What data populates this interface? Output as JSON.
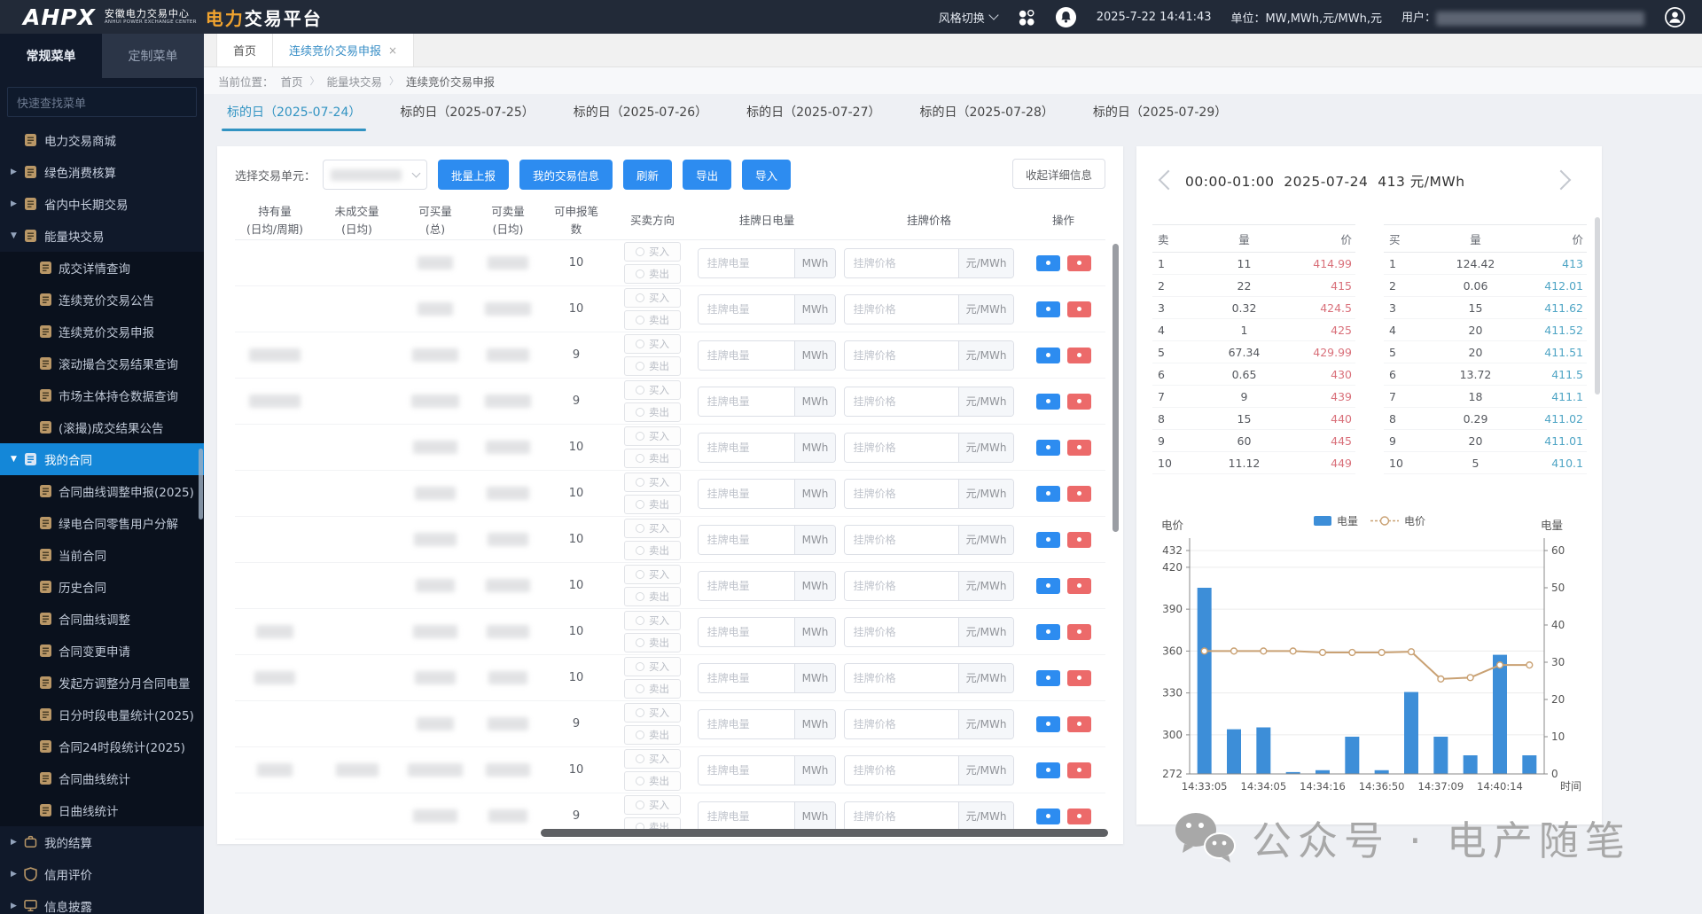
{
  "header": {
    "logo_text": "AHPX",
    "org_cn": "安徽电力交易中心",
    "org_en": "ANHUI POWER EXCHANGE CENTER",
    "title_accent": "电力",
    "title_rest": "交易平台",
    "style_switch_label": "风格切换",
    "datetime": "2025-7-22 14:41:43",
    "units_text": "单位：MW,MWh,元/MWh,元",
    "user_prefix": "用户："
  },
  "sidebar": {
    "tabs": [
      {
        "label": "常规菜单",
        "active": true
      },
      {
        "label": "定制菜单",
        "active": false
      }
    ],
    "search_placeholder": "快速查找菜单",
    "menu": [
      {
        "label": "电力交易商城",
        "depth": 0,
        "arrow": "",
        "icon": "doc"
      },
      {
        "label": "绿色消费核算",
        "depth": 0,
        "arrow": "right",
        "icon": "doc"
      },
      {
        "label": "省内中长期交易",
        "depth": 0,
        "arrow": "right",
        "icon": "doc"
      },
      {
        "label": "能量块交易",
        "depth": 0,
        "arrow": "down",
        "icon": "doc"
      },
      {
        "label": "成交详情查询",
        "depth": 1,
        "icon": "doc"
      },
      {
        "label": "连续竞价交易公告",
        "depth": 1,
        "icon": "doc"
      },
      {
        "label": "连续竞价交易申报",
        "depth": 1,
        "icon": "doc"
      },
      {
        "label": "滚动撮合交易结果查询",
        "depth": 1,
        "icon": "doc"
      },
      {
        "label": "市场主体持仓数据查询",
        "depth": 1,
        "icon": "doc"
      },
      {
        "label": "(滚撮)成交结果公告",
        "depth": 1,
        "icon": "doc"
      },
      {
        "label": "我的合同",
        "depth": 0,
        "arrow": "down",
        "icon": "doc",
        "selected": true
      },
      {
        "label": "合同曲线调整申报(2025)",
        "depth": 1,
        "icon": "doc"
      },
      {
        "label": "绿电合同零售用户分解",
        "depth": 1,
        "icon": "doc"
      },
      {
        "label": "当前合同",
        "depth": 1,
        "icon": "doc"
      },
      {
        "label": "历史合同",
        "depth": 1,
        "icon": "doc"
      },
      {
        "label": "合同曲线调整",
        "depth": 1,
        "icon": "doc"
      },
      {
        "label": "合同变更申请",
        "depth": 1,
        "icon": "doc"
      },
      {
        "label": "发起方调整分月合同电量",
        "depth": 1,
        "icon": "doc"
      },
      {
        "label": "日分时段电量统计(2025)",
        "depth": 1,
        "icon": "doc"
      },
      {
        "label": "合同24时段统计(2025)",
        "depth": 1,
        "icon": "doc"
      },
      {
        "label": "合同曲线统计",
        "depth": 1,
        "icon": "doc"
      },
      {
        "label": "日曲线统计",
        "depth": 1,
        "icon": "doc"
      },
      {
        "label": "我的结算",
        "depth": 0,
        "arrow": "right",
        "icon": "briefcase"
      },
      {
        "label": "信用评价",
        "depth": 0,
        "arrow": "right",
        "icon": "shield"
      },
      {
        "label": "信息披露",
        "depth": 0,
        "arrow": "right",
        "icon": "board"
      }
    ]
  },
  "page_tabs": [
    {
      "label": "首页",
      "active": false,
      "close": ""
    },
    {
      "label": "连续竞价交易申报",
      "active": true,
      "close": "×"
    }
  ],
  "breadcrumb": {
    "prefix": "当前位置：",
    "items": [
      "首页",
      "能量块交易",
      "连续竞价交易申报"
    ]
  },
  "date_tabs": [
    {
      "label": "标的日（2025-07-24）",
      "active": true
    },
    {
      "label": "标的日（2025-07-25）",
      "active": false
    },
    {
      "label": "标的日（2025-07-26）",
      "active": false
    },
    {
      "label": "标的日（2025-07-27）",
      "active": false
    },
    {
      "label": "标的日（2025-07-28）",
      "active": false
    },
    {
      "label": "标的日（2025-07-29）",
      "active": false
    }
  ],
  "toolbar": {
    "unit_select_label": "选择交易单元：",
    "buttons": [
      "批量上报",
      "我的交易信息",
      "刷新",
      "导出",
      "导入"
    ],
    "collapse_button": "收起详细信息"
  },
  "declare_table": {
    "headers": [
      {
        "l1": "持有量",
        "l2": "(日均/周期)"
      },
      {
        "l1": "未成交量",
        "l2": "(日均)"
      },
      {
        "l1": "可买量",
        "l2": "(总)"
      },
      {
        "l1": "可卖量",
        "l2": "(日均)"
      },
      {
        "l1": "可申报笔",
        "l2": "数"
      },
      {
        "l1": "买卖方向",
        "l2": ""
      },
      {
        "l1": "挂牌日电量",
        "l2": ""
      },
      {
        "l1": "挂牌价格",
        "l2": ""
      },
      {
        "l1": "操作",
        "l2": ""
      }
    ],
    "buy_label": "买入",
    "sell_label": "卖出",
    "qty_placeholder": "挂牌电量",
    "qty_unit": "MWh",
    "price_placeholder": "挂牌价格",
    "price_unit": "元/MWh",
    "rows": [
      {
        "declare_limit": "10"
      },
      {
        "declare_limit": "10"
      },
      {
        "declare_limit": "9"
      },
      {
        "declare_limit": "9"
      },
      {
        "declare_limit": "10"
      },
      {
        "declare_limit": "10"
      },
      {
        "declare_limit": "10"
      },
      {
        "declare_limit": "10"
      },
      {
        "declare_limit": "10"
      },
      {
        "declare_limit": "10"
      },
      {
        "declare_limit": "9"
      },
      {
        "declare_limit": "10"
      },
      {
        "declare_limit": "9"
      }
    ]
  },
  "orderbook": {
    "period": "00:00-01:00",
    "date": "2025-07-24",
    "price": "413",
    "price_unit": "元/MWh",
    "sell_headers": [
      "卖",
      "量",
      "价"
    ],
    "buy_headers": [
      "买",
      "量",
      "价"
    ],
    "sell_rows": [
      [
        "1",
        "11",
        "414.99"
      ],
      [
        "2",
        "22",
        "415"
      ],
      [
        "3",
        "0.32",
        "424.5"
      ],
      [
        "4",
        "1",
        "425"
      ],
      [
        "5",
        "67.34",
        "429.99"
      ],
      [
        "6",
        "0.65",
        "430"
      ],
      [
        "7",
        "9",
        "439"
      ],
      [
        "8",
        "15",
        "440"
      ],
      [
        "9",
        "60",
        "445"
      ],
      [
        "10",
        "11.12",
        "449"
      ]
    ],
    "buy_rows": [
      [
        "1",
        "124.42",
        "413"
      ],
      [
        "2",
        "0.06",
        "412.01"
      ],
      [
        "3",
        "15",
        "411.62"
      ],
      [
        "4",
        "20",
        "411.52"
      ],
      [
        "5",
        "20",
        "411.51"
      ],
      [
        "6",
        "13.72",
        "411.5"
      ],
      [
        "7",
        "18",
        "411.1"
      ],
      [
        "8",
        "0.29",
        "411.02"
      ],
      [
        "9",
        "20",
        "411.01"
      ],
      [
        "10",
        "5",
        "410.1"
      ]
    ]
  },
  "chart_data": {
    "type": "bar",
    "legend": [
      "电量",
      "电价"
    ],
    "left_axis": {
      "title": "电价",
      "min": 272,
      "max": 432,
      "ticks": [
        432,
        420,
        390,
        360,
        330,
        300,
        272
      ]
    },
    "right_axis": {
      "title": "电量",
      "min": 0,
      "max": 60,
      "ticks": [
        60,
        50,
        40,
        30,
        20,
        10,
        0
      ]
    },
    "x_axis_title": "时间",
    "x_tick_labels": [
      "14:33:05",
      "14:34:05",
      "14:34:16",
      "14:36:50",
      "14:37:09",
      "14:40:14"
    ],
    "series": [
      {
        "name": "电量",
        "type": "bar",
        "axis": "right",
        "color": "#3d8ed8",
        "values": [
          50,
          12,
          12.5,
          0.5,
          1,
          10,
          1,
          22,
          10,
          5,
          32,
          5
        ]
      },
      {
        "name": "电价",
        "type": "line",
        "axis": "left",
        "color": "#c9a173",
        "values": [
          360,
          360,
          360,
          360,
          359,
          359,
          359,
          359.5,
          340,
          341,
          350,
          350
        ]
      }
    ]
  },
  "watermark": {
    "text": "公众号 · 电产随笔"
  },
  "colors": {
    "header_bg": "#222a38",
    "accent_orange": "#f0a32f",
    "primary_blue": "#2d8cf0",
    "selected_menu": "#1487d8",
    "date_tab_active": "#3193c2",
    "sell_price": "#d9707a",
    "buy_price": "#4fa5c5",
    "bar_blue": "#3d8ed8",
    "line_tan": "#c9a173",
    "danger_red": "#ec6a6a"
  }
}
